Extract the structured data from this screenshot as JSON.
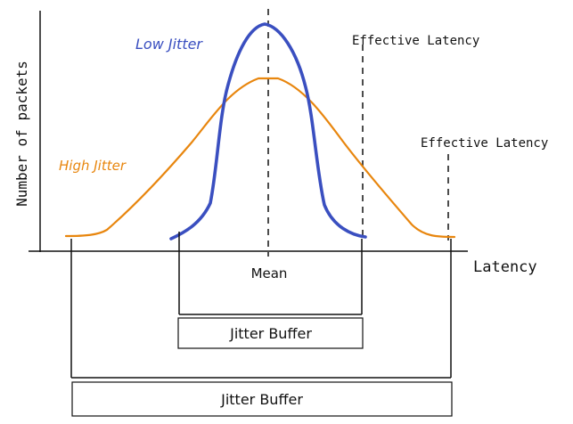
{
  "labels": {
    "y_axis": "Number of packets",
    "x_axis": "Latency",
    "mean": "Mean",
    "low_jitter": "Low Jitter",
    "high_jitter": "High Jitter",
    "effective_latency_low": "Effective Latency",
    "effective_latency_high": "Effective Latency",
    "jitter_buffer_low": "Jitter Buffer",
    "jitter_buffer_high": "Jitter Buffer"
  },
  "colors": {
    "low_jitter": "#3a4fc0",
    "high_jitter": "#e8860e",
    "ink": "#111111"
  }
}
